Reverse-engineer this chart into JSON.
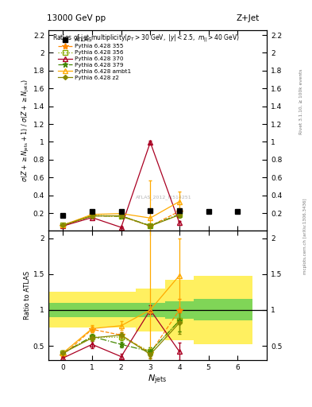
{
  "title_top": "13000 GeV pp",
  "title_right": "Z+Jet",
  "right_label1": "Rivet 3.1.10, ≥ 100k events",
  "right_label2": "mcplots.cern.ch [arXiv:1306.3436]",
  "watermark": "ATLAS_2012_I1514251",
  "atlas_x": [
    0,
    1,
    2,
    3,
    4,
    5,
    6
  ],
  "atlas_y": [
    0.175,
    0.215,
    0.22,
    0.225,
    0.225,
    0.215,
    0.215
  ],
  "atlas_yerr": [
    0.008,
    0.008,
    0.008,
    0.01,
    0.01,
    0.01,
    0.01
  ],
  "series": [
    {
      "label": "Pythia 6.428 355",
      "color": "#ff8800",
      "linestyle": "--",
      "marker": "*",
      "markersize": 6,
      "x": [
        0,
        1,
        2,
        3,
        4
      ],
      "y": [
        0.06,
        0.17,
        0.165,
        0.055,
        0.22
      ],
      "yerr": [
        0.004,
        0.006,
        0.006,
        0.006,
        0.03
      ]
    },
    {
      "label": "Pythia 6.428 356",
      "color": "#88aa00",
      "linestyle": ":",
      "marker": "s",
      "markerfacecolor": "none",
      "markersize": 4,
      "x": [
        0,
        1,
        2,
        3,
        4
      ],
      "y": [
        0.065,
        0.175,
        0.165,
        0.06,
        0.185
      ],
      "yerr": [
        0.004,
        0.006,
        0.006,
        0.007,
        0.03
      ]
    },
    {
      "label": "Pythia 6.428 370",
      "color": "#aa0022",
      "linestyle": "-",
      "marker": "^",
      "markerfacecolor": "none",
      "markersize": 5,
      "x": [
        0,
        1,
        2,
        3,
        4
      ],
      "y": [
        0.055,
        0.15,
        0.04,
        0.995,
        0.09
      ],
      "yerr": [
        0.004,
        0.008,
        0.006,
        0.015,
        0.02
      ]
    },
    {
      "label": "Pythia 6.428 379",
      "color": "#448800",
      "linestyle": "-.",
      "marker": "*",
      "markersize": 5,
      "x": [
        0,
        1,
        2,
        3,
        4
      ],
      "y": [
        0.065,
        0.17,
        0.165,
        0.06,
        0.185
      ],
      "yerr": [
        0.004,
        0.006,
        0.006,
        0.007,
        0.03
      ]
    },
    {
      "label": "Pythia 6.428 ambt1",
      "color": "#ffaa00",
      "linestyle": "-",
      "marker": "^",
      "markerfacecolor": "none",
      "markersize": 5,
      "x": [
        0,
        1,
        2,
        3,
        4
      ],
      "y": [
        0.065,
        0.185,
        0.195,
        0.145,
        0.33
      ],
      "yerr": [
        0.004,
        0.008,
        0.01,
        0.42,
        0.11
      ]
    },
    {
      "label": "Pythia 6.428 z2",
      "color": "#888800",
      "linestyle": "-",
      "marker": "D",
      "markersize": 3,
      "x": [
        0,
        1,
        2,
        3,
        4
      ],
      "y": [
        0.065,
        0.168,
        0.17,
        0.055,
        0.18
      ],
      "yerr": [
        0.004,
        0.006,
        0.006,
        0.007,
        0.03
      ]
    }
  ],
  "ratio_series": [
    {
      "label": "Pythia 6.428 355",
      "color": "#ff8800",
      "linestyle": "--",
      "marker": "*",
      "markersize": 6,
      "x": [
        0,
        1,
        2,
        3,
        4
      ],
      "y": [
        0.37,
        0.73,
        0.65,
        0.4,
        1.0
      ],
      "yerr": [
        0.03,
        0.04,
        0.04,
        0.06,
        0.15
      ]
    },
    {
      "label": "Pythia 6.428 356",
      "color": "#88aa00",
      "linestyle": ":",
      "marker": "s",
      "markerfacecolor": "none",
      "markersize": 4,
      "x": [
        0,
        1,
        2,
        3,
        4
      ],
      "y": [
        0.4,
        0.62,
        0.62,
        0.42,
        0.85
      ],
      "yerr": [
        0.03,
        0.04,
        0.04,
        0.06,
        0.15
      ]
    },
    {
      "label": "Pythia 6.428 370",
      "color": "#aa0022",
      "linestyle": "-",
      "marker": "^",
      "markerfacecolor": "none",
      "markersize": 5,
      "x": [
        0,
        1,
        2,
        3,
        4
      ],
      "y": [
        0.33,
        0.52,
        0.35,
        1.0,
        0.42
      ],
      "yerr": [
        0.03,
        0.05,
        0.04,
        0.06,
        0.12
      ]
    },
    {
      "label": "Pythia 6.428 379",
      "color": "#448800",
      "linestyle": "-.",
      "marker": "*",
      "markersize": 5,
      "x": [
        0,
        1,
        2,
        3,
        4
      ],
      "y": [
        0.4,
        0.63,
        0.52,
        0.42,
        0.85
      ],
      "yerr": [
        0.03,
        0.04,
        0.04,
        0.06,
        0.15
      ]
    },
    {
      "label": "Pythia 6.428 ambt1",
      "color": "#ffaa00",
      "linestyle": "-",
      "marker": "^",
      "markerfacecolor": "none",
      "markersize": 5,
      "x": [
        0,
        1,
        2,
        3,
        4
      ],
      "y": [
        0.4,
        0.74,
        0.78,
        1.0,
        1.48
      ],
      "yerr": [
        0.03,
        0.05,
        0.06,
        1.55,
        0.52
      ]
    },
    {
      "label": "Pythia 6.428 z2",
      "color": "#888800",
      "linestyle": "-",
      "marker": "D",
      "markersize": 3,
      "x": [
        0,
        1,
        2,
        3,
        4
      ],
      "y": [
        0.4,
        0.61,
        0.65,
        0.38,
        0.82
      ],
      "yerr": [
        0.03,
        0.04,
        0.04,
        0.06,
        0.15
      ]
    }
  ],
  "band_edges": [
    -0.5,
    0.5,
    1.5,
    2.5,
    3.5,
    4.5,
    6.5
  ],
  "band_inner": [
    0.1,
    0.1,
    0.1,
    0.1,
    0.12,
    0.15
  ],
  "band_outer": [
    0.25,
    0.25,
    0.25,
    0.3,
    0.42,
    0.48
  ],
  "xlim": [
    -0.5,
    7.0
  ],
  "ylim_main": [
    0.0,
    2.25
  ],
  "ylim_ratio": [
    0.3,
    2.1
  ],
  "yticks_main": [
    0.2,
    0.4,
    0.6,
    0.8,
    1.0,
    1.2,
    1.4,
    1.6,
    1.8,
    2.0,
    2.2
  ],
  "yticklabels_main": [
    "0.2",
    "0.4",
    "0.6",
    "0.8",
    "1",
    "1.2",
    "1.4",
    "1.6",
    "1.8",
    "2",
    "2.2"
  ],
  "yticks_ratio": [
    0.5,
    1.0,
    1.5,
    2.0
  ],
  "yticklabels_ratio": [
    "0.5",
    "1",
    "1.5",
    "2"
  ],
  "xticks": [
    0,
    1,
    2,
    3,
    4,
    5,
    6
  ]
}
